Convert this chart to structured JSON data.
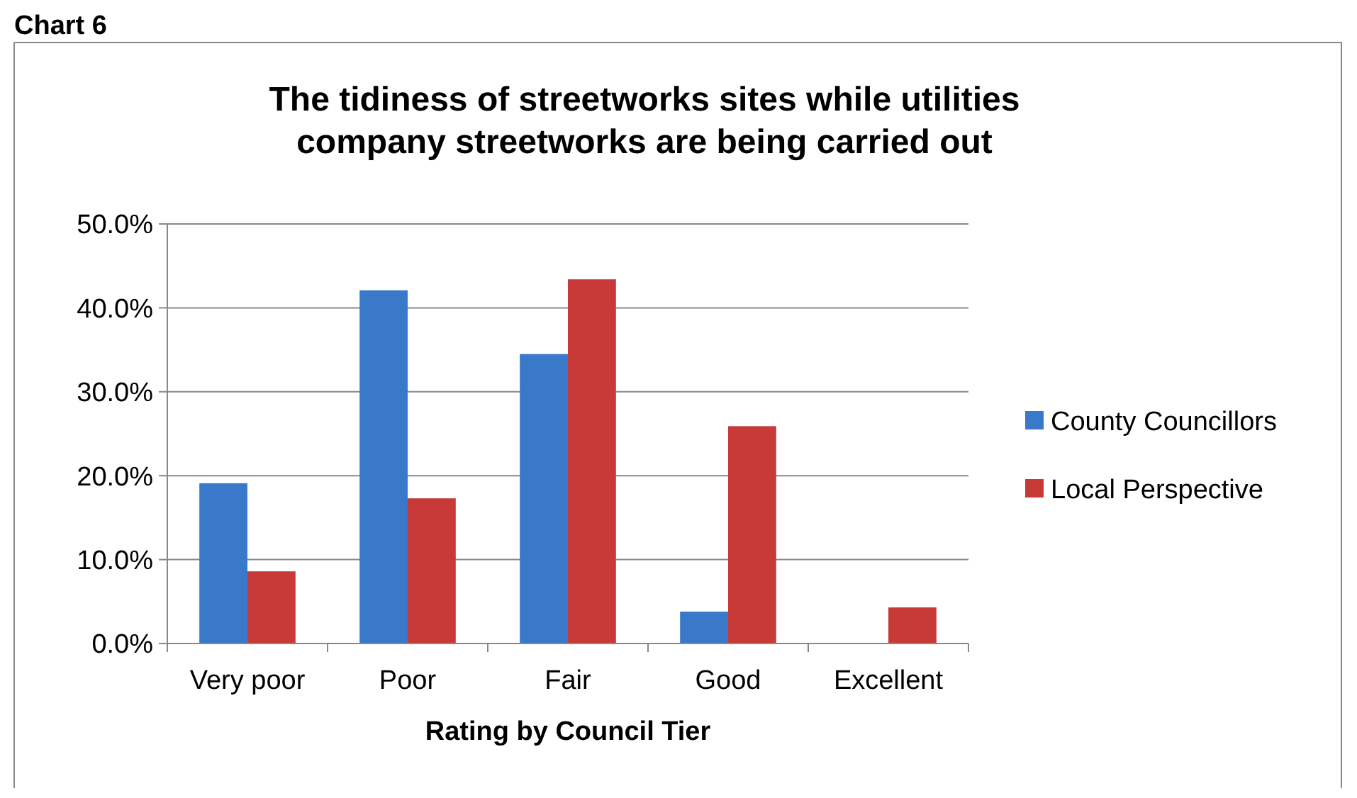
{
  "chart_data": {
    "type": "bar",
    "title": "The tidiness of streetworks sites while utilities company streetworks are being carried out",
    "xlabel": "Rating by Council Tier",
    "annotations": [
      "Chart 6"
    ],
    "categories": [
      "Very poor",
      "Poor",
      "Fair",
      "Good",
      "Excellent"
    ],
    "series": [
      {
        "name": "County Councillors",
        "color": "#3a78c9",
        "values": [
          19.1,
          42.1,
          34.5,
          3.8,
          0
        ]
      },
      {
        "name": "Local Perspective",
        "color": "#c83a37",
        "values": [
          8.6,
          17.3,
          43.4,
          25.9,
          4.3
        ]
      }
    ],
    "ylim": [
      0,
      50
    ],
    "yticks": [
      {
        "value": 0,
        "label": "0.0%"
      },
      {
        "value": 10,
        "label": "10.0%"
      },
      {
        "value": 20,
        "label": "20.0%"
      },
      {
        "value": 30,
        "label": "30.0%"
      },
      {
        "value": 40,
        "label": "40.0%"
      },
      {
        "value": 50,
        "label": "50.0%"
      }
    ],
    "grid": "y",
    "legend": "right"
  }
}
